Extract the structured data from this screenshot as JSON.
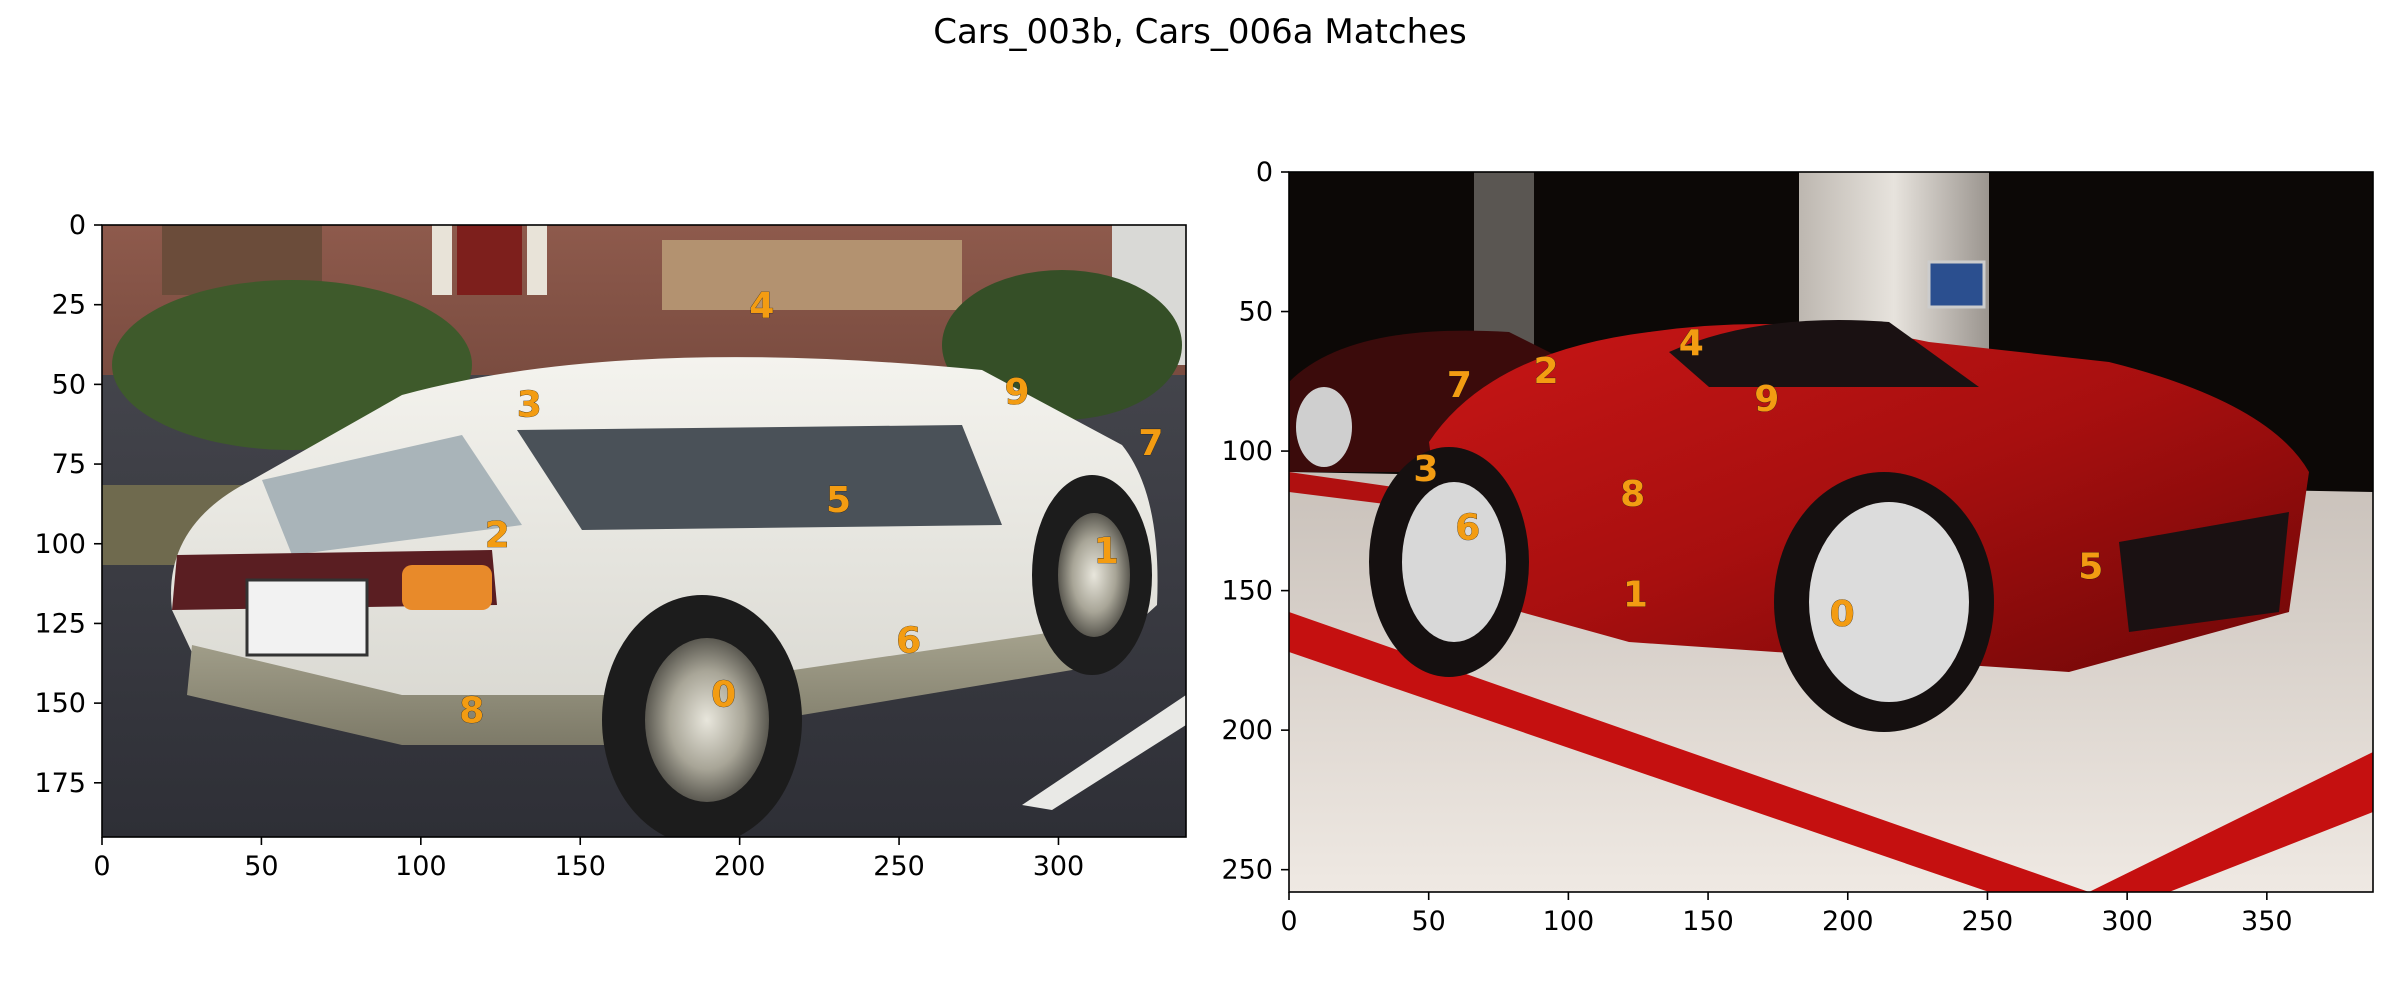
{
  "title": "Cars_003b, Cars_006a Matches",
  "colors": {
    "keypoint": "#f39c12",
    "axis": "#000000"
  },
  "chart_data": [
    {
      "type": "scatter",
      "panel": "left",
      "image_description": "photo of a white Subaru station wagon parked in a lot in front of a brick building",
      "xlim": [
        0,
        340
      ],
      "ylim": [
        192,
        0
      ],
      "xticks": [
        0,
        50,
        100,
        150,
        200,
        250,
        300
      ],
      "yticks": [
        0,
        25,
        50,
        75,
        100,
        125,
        150,
        175
      ],
      "points": [
        {
          "label": "0",
          "x": 195,
          "y": 147
        },
        {
          "label": "1",
          "x": 315,
          "y": 102
        },
        {
          "label": "2",
          "x": 124,
          "y": 97
        },
        {
          "label": "3",
          "x": 134,
          "y": 56
        },
        {
          "label": "4",
          "x": 207,
          "y": 25
        },
        {
          "label": "5",
          "x": 231,
          "y": 86
        },
        {
          "label": "6",
          "x": 253,
          "y": 130
        },
        {
          "label": "7",
          "x": 329,
          "y": 68
        },
        {
          "label": "8",
          "x": 116,
          "y": 152
        },
        {
          "label": "9",
          "x": 287,
          "y": 52
        }
      ]
    },
    {
      "type": "scatter",
      "panel": "right",
      "image_description": "photo of a red Ferrari on a showroom display platform with a dark background",
      "xlim": [
        0,
        388
      ],
      "ylim": [
        258,
        0
      ],
      "xticks": [
        0,
        50,
        100,
        150,
        200,
        250,
        300,
        350
      ],
      "yticks": [
        0,
        50,
        100,
        150,
        200,
        250
      ],
      "points": [
        {
          "label": "0",
          "x": 198,
          "y": 158
        },
        {
          "label": "1",
          "x": 124,
          "y": 151
        },
        {
          "label": "2",
          "x": 92,
          "y": 71
        },
        {
          "label": "3",
          "x": 49,
          "y": 106
        },
        {
          "label": "4",
          "x": 144,
          "y": 61
        },
        {
          "label": "5",
          "x": 287,
          "y": 141
        },
        {
          "label": "6",
          "x": 64,
          "y": 127
        },
        {
          "label": "7",
          "x": 61,
          "y": 76
        },
        {
          "label": "8",
          "x": 123,
          "y": 115
        },
        {
          "label": "9",
          "x": 171,
          "y": 81
        }
      ]
    }
  ]
}
